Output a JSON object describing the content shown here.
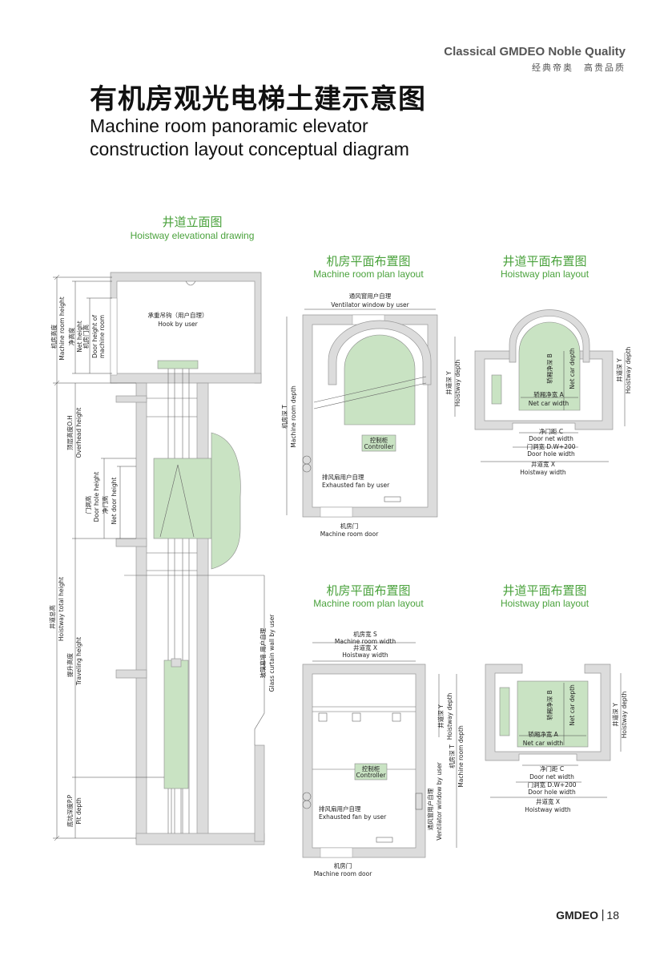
{
  "brand": {
    "tagline_en": "Classical GMDEO Noble Quality",
    "tagline_cn": "经典帝奥　高贵品质"
  },
  "title": {
    "cn": "有机房观光电梯土建示意图",
    "en_line1": "Machine room panoramic elevator",
    "en_line2": "construction layout conceptual diagram"
  },
  "sections": {
    "elevation": {
      "cn": "井道立面图",
      "en": "Hoistway elevational drawing"
    },
    "machine_plan_1": {
      "cn": "机房平面布置图",
      "en": "Machine room plan layout"
    },
    "hoistway_plan_1": {
      "cn": "井道平面布置图",
      "en": "Hoistway plan layout"
    },
    "machine_plan_2": {
      "cn": "机房平面布置图",
      "en": "Machine room plan layout"
    },
    "hoistway_plan_2": {
      "cn": "井道平面布置图",
      "en": "Hoistway plan layout"
    }
  },
  "elevation_labels": {
    "hook_cn": "承重吊钩（用户自理）",
    "hook_en": "Hook by user",
    "mr_height_cn": "机房高度",
    "mr_height_en": "Machine room height",
    "net_height_cn": "净高度",
    "net_height_en": "Net height",
    "mr_door_cn": "机房门高",
    "mr_door_en1": "Door height of",
    "mr_door_en2": "machine room",
    "overhead_cn": "顶层高度O.H",
    "overhead_en": "Overhead height",
    "door_hole_cn": "门洞高",
    "door_hole_en": "Door hole height",
    "net_door_cn": "净门高",
    "net_door_en": "Net door height",
    "total_cn": "井道总高",
    "total_en": "Hoistway total height",
    "travel_cn": "提升高度",
    "travel_en": "Traveling height",
    "pit_cn": "底坑深度P.P",
    "pit_en": "Pit depth",
    "glass_cn": "玻璃幕墙 用户自理",
    "glass_en": "Glass curtain wall by user"
  },
  "mr_plan_1_labels": {
    "vent_cn": "通风窗用户自理",
    "vent_en": "Ventilator window by user",
    "depth_cn": "机房深 T",
    "depth_en": "Machine room depth",
    "hw_depth_cn": "井道深 Y",
    "hw_depth_en": "Hoistway depth",
    "controller_cn": "控制柜",
    "controller_en": "Controller",
    "fan_cn": "排风扇用户自理",
    "fan_en": "Exhausted fan by user",
    "door_cn": "机房门",
    "door_en": "Machine room door"
  },
  "hw_plan_1_labels": {
    "car_depth_cn": "轿厢净深 B",
    "car_depth_en": "Net car depth",
    "car_width_cn": "轿厢净宽 A",
    "car_width_en": "Net car width",
    "hw_depth_cn": "井道深 Y",
    "hw_depth_en": "Hoistway depth",
    "net_door_cn": "净门距 C",
    "net_door_en": "Door net width",
    "door_hole_cn": "门洞宽 D.W+200",
    "door_hole_en": "Door hole width",
    "hw_width_cn": "井道宽 X",
    "hw_width_en": "Hoistway width"
  },
  "mr_plan_2_labels": {
    "mr_width_cn": "机房宽 S",
    "mr_width_en": "Machine room width",
    "hw_width_cn": "井道宽 X",
    "hw_width_en": "Hoistway width",
    "hw_depth_cn": "井道深 Y",
    "hw_depth_en": "Hoistway depth",
    "mr_depth_cn": "机房深 T",
    "mr_depth_en": "Machine room depth",
    "controller_cn": "控制柜",
    "controller_en": "Controller",
    "vent_cn": "通风窗用户自理",
    "vent_en": "Ventilator window by user",
    "fan_cn": "排风扇用户自理",
    "fan_en": "Exhausted fan by user",
    "door_cn": "机房门",
    "door_en": "Machine room door"
  },
  "hw_plan_2_labels": {
    "car_depth_cn": "轿厢净深 B",
    "car_depth_en": "Net car depth",
    "car_width_cn": "轿厢净宽 A",
    "car_width_en": "Net car width",
    "hw_depth_cn": "井道深 Y",
    "hw_depth_en": "Hoistway depth",
    "net_door_cn": "净门距 C",
    "net_door_en": "Door net width",
    "door_hole_cn": "门洞宽 D.W+200",
    "door_hole_en": "Door hole width",
    "hw_width_cn": "井道宽 X",
    "hw_width_en": "Hoistway width"
  },
  "footer": {
    "logo": "GMDEO",
    "separator": "|",
    "page": "18"
  }
}
